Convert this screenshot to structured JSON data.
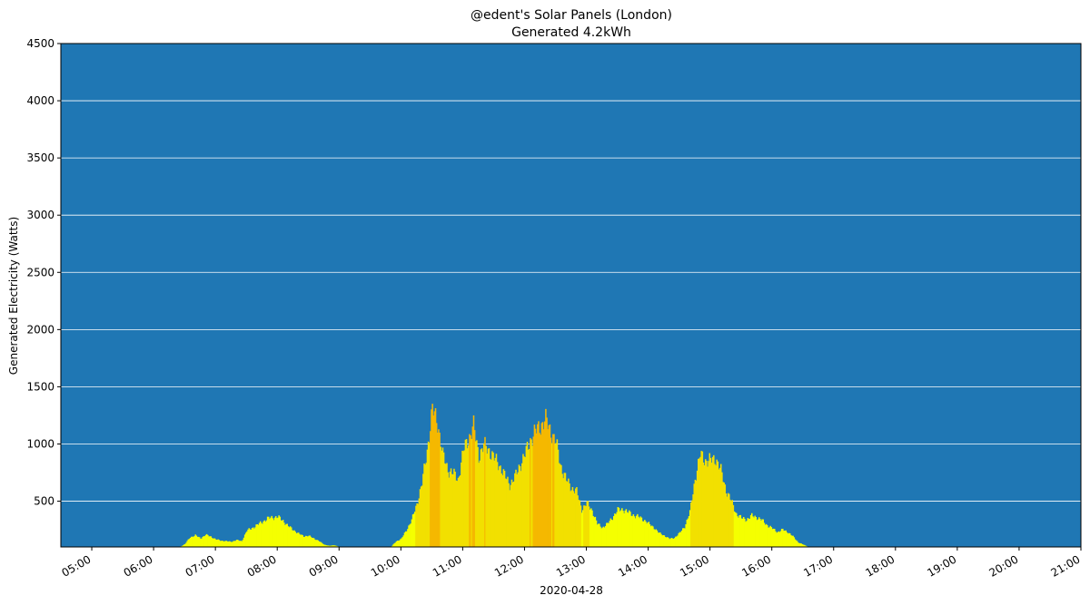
{
  "chart_data": {
    "type": "bar",
    "title": "@edent's Solar Panels (London)",
    "subtitle": "Generated 4.2kWh",
    "xlabel": "2020-04-28",
    "ylabel": "Generated Electricity (Watts)",
    "ylim": [
      100,
      4500
    ],
    "yticks": [
      500,
      1000,
      1500,
      2000,
      2500,
      3000,
      3500,
      4000,
      4500
    ],
    "xlim": [
      "04:30",
      "21:00"
    ],
    "xticks": [
      "05:00",
      "06:00",
      "07:00",
      "08:00",
      "09:00",
      "10:00",
      "11:00",
      "12:00",
      "13:00",
      "14:00",
      "15:00",
      "16:00",
      "17:00",
      "18:00",
      "19:00",
      "20:00",
      "21:00"
    ],
    "grid": "horizontal",
    "colors": {
      "plot_background": "#1f77b4",
      "grid": "#ffffff",
      "low": "#f5ff00",
      "mid": "#f2e000",
      "high": "#f5b800"
    },
    "profile": [
      [
        "06:25",
        100
      ],
      [
        "06:30",
        125
      ],
      [
        "06:35",
        185
      ],
      [
        "06:40",
        200
      ],
      [
        "06:45",
        175
      ],
      [
        "06:50",
        205
      ],
      [
        "06:55",
        190
      ],
      [
        "07:00",
        165
      ],
      [
        "07:05",
        155
      ],
      [
        "07:10",
        150
      ],
      [
        "07:15",
        145
      ],
      [
        "07:20",
        160
      ],
      [
        "07:25",
        150
      ],
      [
        "07:30",
        240
      ],
      [
        "07:35",
        265
      ],
      [
        "07:40",
        290
      ],
      [
        "07:45",
        320
      ],
      [
        "07:50",
        345
      ],
      [
        "07:55",
        360
      ],
      [
        "08:00",
        360
      ],
      [
        "08:05",
        330
      ],
      [
        "08:10",
        280
      ],
      [
        "08:15",
        250
      ],
      [
        "08:20",
        215
      ],
      [
        "08:25",
        195
      ],
      [
        "08:30",
        195
      ],
      [
        "08:35",
        175
      ],
      [
        "08:40",
        150
      ],
      [
        "08:45",
        120
      ],
      [
        "08:50",
        110
      ],
      [
        "08:55",
        115
      ],
      [
        "09:00",
        100
      ],
      [
        "09:50",
        100
      ],
      [
        "09:55",
        150
      ],
      [
        "10:00",
        170
      ],
      [
        "10:05",
        250
      ],
      [
        "10:10",
        330
      ],
      [
        "10:15",
        480
      ],
      [
        "10:20",
        650
      ],
      [
        "10:25",
        950
      ],
      [
        "10:30",
        1290
      ],
      [
        "10:35",
        1200
      ],
      [
        "10:40",
        900
      ],
      [
        "10:45",
        780
      ],
      [
        "10:50",
        740
      ],
      [
        "10:55",
        690
      ],
      [
        "11:00",
        930
      ],
      [
        "11:05",
        1050
      ],
      [
        "11:10",
        1150
      ],
      [
        "11:15",
        900
      ],
      [
        "11:20",
        980
      ],
      [
        "11:25",
        950
      ],
      [
        "11:30",
        870
      ],
      [
        "11:35",
        820
      ],
      [
        "11:40",
        720
      ],
      [
        "11:45",
        650
      ],
      [
        "11:50",
        700
      ],
      [
        "11:55",
        820
      ],
      [
        "12:00",
        900
      ],
      [
        "12:05",
        1040
      ],
      [
        "12:10",
        1100
      ],
      [
        "12:15",
        1170
      ],
      [
        "12:20",
        1200
      ],
      [
        "12:25",
        1120
      ],
      [
        "12:30",
        1000
      ],
      [
        "12:35",
        800
      ],
      [
        "12:40",
        680
      ],
      [
        "12:45",
        620
      ],
      [
        "12:50",
        580
      ],
      [
        "12:55",
        430
      ],
      [
        "13:00",
        480
      ],
      [
        "13:05",
        420
      ],
      [
        "13:10",
        300
      ],
      [
        "13:15",
        270
      ],
      [
        "13:20",
        300
      ],
      [
        "13:25",
        360
      ],
      [
        "13:30",
        420
      ],
      [
        "13:35",
        430
      ],
      [
        "13:40",
        400
      ],
      [
        "13:45",
        380
      ],
      [
        "13:50",
        360
      ],
      [
        "13:55",
        340
      ],
      [
        "14:00",
        300
      ],
      [
        "14:05",
        270
      ],
      [
        "14:10",
        220
      ],
      [
        "14:15",
        200
      ],
      [
        "14:20",
        170
      ],
      [
        "14:25",
        180
      ],
      [
        "14:30",
        220
      ],
      [
        "14:35",
        280
      ],
      [
        "14:40",
        400
      ],
      [
        "14:45",
        700
      ],
      [
        "14:50",
        900
      ],
      [
        "14:55",
        860
      ],
      [
        "15:00",
        850
      ],
      [
        "15:05",
        880
      ],
      [
        "15:10",
        760
      ],
      [
        "15:15",
        600
      ],
      [
        "15:20",
        500
      ],
      [
        "15:25",
        390
      ],
      [
        "15:30",
        350
      ],
      [
        "15:35",
        340
      ],
      [
        "15:40",
        370
      ],
      [
        "15:45",
        360
      ],
      [
        "15:50",
        330
      ],
      [
        "15:55",
        290
      ],
      [
        "16:00",
        260
      ],
      [
        "16:05",
        230
      ],
      [
        "16:10",
        250
      ],
      [
        "16:15",
        230
      ],
      [
        "16:20",
        190
      ],
      [
        "16:25",
        140
      ],
      [
        "16:30",
        120
      ],
      [
        "16:35",
        100
      ]
    ]
  }
}
